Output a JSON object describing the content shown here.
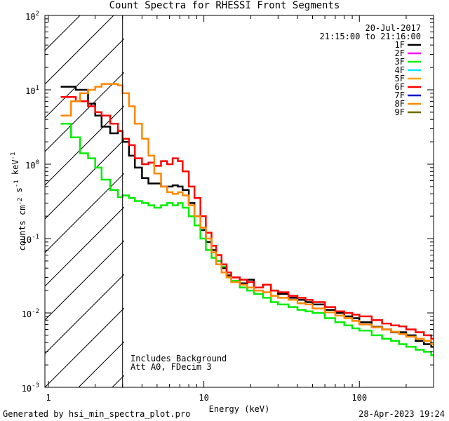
{
  "chart_data": {
    "type": "line",
    "title": "Count Spectra for RHESSI Front Segments",
    "xlabel": "Energy (keV)",
    "ylabel": "counts cm^-2 s^-1 keV^-1",
    "xscale": "log",
    "yscale": "log",
    "xlim": [
      0.95,
      300
    ],
    "ylim": [
      0.001,
      100
    ],
    "x_tick_labels": [
      "1",
      "10",
      "100"
    ],
    "y_tick_labels": [
      {
        "base": "10",
        "exp": "-3"
      },
      {
        "base": "10",
        "exp": "-2"
      },
      {
        "base": "10",
        "exp": "-1"
      },
      {
        "base": "10",
        "exp": "0"
      },
      {
        "base": "10",
        "exp": "1"
      },
      {
        "base": "10",
        "exp": "2"
      }
    ],
    "legend": {
      "position": "top-right",
      "date": "20-Jul-2017",
      "time_range": "21:15:00 to 21:16:00",
      "entries": [
        {
          "name": "1F",
          "color": "#000000"
        },
        {
          "name": "2F",
          "color": "#ff00ff"
        },
        {
          "name": "3F",
          "color": "#00ee00"
        },
        {
          "name": "4F",
          "color": "#00e5ff"
        },
        {
          "name": "5F",
          "color": "#ffa500"
        },
        {
          "name": "6F",
          "color": "#ff0000"
        },
        {
          "name": "7F",
          "color": "#0000cc"
        },
        {
          "name": "8F",
          "color": "#ff8800"
        },
        {
          "name": "9F",
          "color": "#6b6b00"
        }
      ]
    },
    "shaded_region": {
      "x_from": 0.95,
      "x_to": 3.0,
      "pattern": "diagonal-hatch"
    },
    "annotations": [
      "Includes Background",
      "Att A0, FDecim 3"
    ],
    "series": [
      {
        "name": "1F",
        "color": "#000000",
        "x": [
          1.2,
          1.5,
          1.8,
          2.0,
          2.2,
          2.5,
          2.8,
          3.0,
          3.3,
          3.6,
          4.0,
          4.4,
          4.8,
          5.3,
          5.8,
          6.3,
          6.8,
          7.3,
          8.0,
          8.7,
          9.5,
          10.3,
          11.2,
          12.0,
          13,
          14,
          15,
          17,
          19,
          21,
          24,
          27,
          30,
          35,
          40,
          45,
          50,
          60,
          70,
          80,
          90,
          100,
          120,
          140,
          160,
          180,
          200,
          230,
          260,
          290
        ],
        "y": [
          11,
          10,
          6.5,
          4.5,
          3.2,
          2.6,
          2.8,
          2.0,
          1.3,
          0.9,
          0.65,
          0.55,
          0.55,
          0.5,
          0.5,
          0.52,
          0.5,
          0.45,
          0.3,
          0.2,
          0.13,
          0.09,
          0.07,
          0.05,
          0.04,
          0.032,
          0.03,
          0.025,
          0.028,
          0.022,
          0.024,
          0.02,
          0.018,
          0.016,
          0.015,
          0.014,
          0.013,
          0.011,
          0.01,
          0.009,
          0.0085,
          0.0075,
          0.0065,
          0.006,
          0.0055,
          0.0055,
          0.005,
          0.0042,
          0.0038,
          0.0035
        ]
      },
      {
        "name": "3F",
        "color": "#00ee00",
        "x": [
          1.2,
          1.4,
          1.6,
          1.8,
          2.0,
          2.2,
          2.5,
          2.8,
          3.0,
          3.3,
          3.6,
          4.0,
          4.4,
          4.8,
          5.3,
          5.8,
          6.3,
          6.8,
          7.3,
          8.0,
          8.7,
          9.5,
          10.3,
          11.2,
          12.0,
          13,
          14,
          15,
          17,
          19,
          21,
          24,
          27,
          30,
          35,
          40,
          45,
          50,
          60,
          70,
          80,
          90,
          100,
          120,
          140,
          160,
          180,
          200,
          230,
          260,
          290
        ],
        "y": [
          3.5,
          2.3,
          1.4,
          1.2,
          0.9,
          0.62,
          0.45,
          0.36,
          0.38,
          0.35,
          0.32,
          0.3,
          0.28,
          0.26,
          0.28,
          0.3,
          0.28,
          0.3,
          0.26,
          0.2,
          0.15,
          0.1,
          0.07,
          0.055,
          0.05,
          0.042,
          0.035,
          0.027,
          0.022,
          0.02,
          0.018,
          0.016,
          0.014,
          0.013,
          0.012,
          0.011,
          0.0105,
          0.01,
          0.0085,
          0.0075,
          0.0068,
          0.0062,
          0.0058,
          0.005,
          0.0045,
          0.0042,
          0.0038,
          0.0035,
          0.0032,
          0.003,
          0.0027
        ]
      },
      {
        "name": "6F",
        "color": "#ff0000",
        "x": [
          1.2,
          1.5,
          1.8,
          2.0,
          2.2,
          2.5,
          2.8,
          3.0,
          3.3,
          3.6,
          4.0,
          4.4,
          4.8,
          5.3,
          5.8,
          6.3,
          6.8,
          7.3,
          8.0,
          8.7,
          9.5,
          10.3,
          11.2,
          12.0,
          13,
          14,
          15,
          17,
          19,
          21,
          24,
          27,
          30,
          35,
          40,
          45,
          50,
          60,
          70,
          80,
          90,
          100,
          120,
          140,
          160,
          180,
          200,
          230,
          260,
          290
        ],
        "y": [
          8,
          7,
          6,
          5,
          4.5,
          3.5,
          2.8,
          2.2,
          1.8,
          1.2,
          1.0,
          1.05,
          0.95,
          1.1,
          1.0,
          1.2,
          1.1,
          0.8,
          0.5,
          0.35,
          0.2,
          0.12,
          0.08,
          0.06,
          0.045,
          0.035,
          0.03,
          0.028,
          0.026,
          0.022,
          0.024,
          0.02,
          0.019,
          0.017,
          0.016,
          0.015,
          0.014,
          0.012,
          0.0105,
          0.01,
          0.0095,
          0.009,
          0.008,
          0.0072,
          0.0068,
          0.0066,
          0.006,
          0.0055,
          0.005,
          0.0045
        ]
      },
      {
        "name": "8F",
        "color": "#ff8800",
        "x": [
          1.2,
          1.4,
          1.6,
          1.8,
          2.0,
          2.2,
          2.5,
          2.8,
          3.0,
          3.3,
          3.6,
          4.0,
          4.4,
          4.8,
          5.3,
          5.8,
          6.3,
          6.8,
          7.3,
          8.0,
          8.7,
          9.5,
          10.3,
          11.2,
          12.0,
          13,
          14,
          15,
          17,
          19,
          21,
          24,
          27,
          30,
          35,
          40,
          45,
          50,
          60,
          70,
          80,
          90,
          100,
          120,
          140,
          160,
          180,
          200,
          230,
          260,
          290
        ],
        "y": [
          4.5,
          7,
          9,
          10,
          11,
          12,
          12,
          11.5,
          9,
          6,
          3.5,
          2.2,
          1.3,
          0.75,
          0.5,
          0.42,
          0.4,
          0.42,
          0.38,
          0.28,
          0.2,
          0.14,
          0.1,
          0.065,
          0.045,
          0.035,
          0.03,
          0.026,
          0.024,
          0.022,
          0.02,
          0.019,
          0.017,
          0.016,
          0.015,
          0.0135,
          0.013,
          0.0115,
          0.0102,
          0.0092,
          0.0085,
          0.0078,
          0.007,
          0.0064,
          0.006,
          0.0056,
          0.0052,
          0.0048,
          0.0045,
          0.0042,
          0.0038
        ]
      }
    ]
  },
  "title": "Count Spectra for RHESSI Front Segments",
  "footer": {
    "left": "Generated by hsi_min_spectra_plot.pro",
    "right": "28-Apr-2023 19:24"
  }
}
